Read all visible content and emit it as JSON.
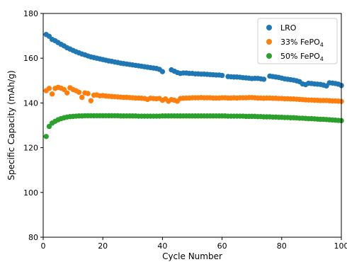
{
  "chart_data": {
    "type": "scatter",
    "xlabel": "Cycle Number",
    "ylabel": "Specific Capacity (mAh/g)",
    "xlim": [
      0,
      100
    ],
    "ylim": [
      80,
      180
    ],
    "xticks": [
      0,
      20,
      40,
      60,
      80,
      100
    ],
    "yticks": [
      80,
      100,
      120,
      140,
      160,
      180
    ],
    "grid": false,
    "legend_position": "top-right",
    "series": [
      {
        "name": "LRO",
        "legend_main": "LRO",
        "legend_sub": "",
        "color": "#1f77b4",
        "x": [
          1,
          2,
          3,
          4,
          5,
          6,
          7,
          8,
          9,
          10,
          11,
          12,
          13,
          14,
          15,
          16,
          17,
          18,
          19,
          20,
          21,
          22,
          23,
          24,
          25,
          26,
          27,
          28,
          29,
          30,
          31,
          32,
          33,
          34,
          35,
          36,
          37,
          38,
          39,
          40,
          43,
          44,
          45,
          46,
          47,
          48,
          49,
          50,
          51,
          52,
          53,
          54,
          55,
          56,
          57,
          58,
          59,
          60,
          62,
          63,
          64,
          65,
          66,
          67,
          68,
          69,
          70,
          71,
          72,
          73,
          74,
          76,
          77,
          78,
          79,
          80,
          81,
          82,
          83,
          84,
          85,
          86,
          87,
          88,
          89,
          90,
          91,
          92,
          93,
          94,
          95,
          96,
          97,
          98,
          99,
          100
        ],
        "y": [
          170.6,
          169.8,
          168.4,
          167.8,
          167.0,
          166.2,
          165.5,
          164.7,
          164.1,
          163.5,
          162.9,
          162.4,
          161.9,
          161.5,
          161.0,
          160.6,
          160.3,
          160.0,
          159.7,
          159.4,
          159.1,
          158.8,
          158.6,
          158.3,
          158.1,
          157.8,
          157.6,
          157.4,
          157.2,
          157.0,
          156.8,
          156.6,
          156.4,
          156.2,
          156.0,
          155.8,
          155.6,
          155.4,
          155.0,
          154.0,
          154.8,
          154.2,
          153.6,
          153.2,
          153.4,
          153.4,
          153.2,
          153.2,
          153.0,
          153.0,
          152.9,
          152.9,
          152.8,
          152.7,
          152.6,
          152.5,
          152.5,
          152.3,
          151.8,
          151.7,
          151.6,
          151.6,
          151.5,
          151.3,
          151.2,
          151.1,
          150.9,
          151.0,
          151.0,
          150.8,
          150.6,
          152.0,
          151.8,
          151.6,
          151.4,
          151.1,
          150.8,
          150.6,
          150.4,
          150.2,
          149.9,
          149.5,
          148.5,
          148.2,
          148.8,
          148.7,
          148.5,
          148.4,
          148.3,
          148.0,
          147.6,
          149.0,
          148.9,
          148.7,
          148.4,
          147.8
        ]
      },
      {
        "name": "33% FePO4",
        "legend_main": "33% FePO",
        "legend_sub": "4",
        "color": "#ff7f0e",
        "x": [
          1,
          2,
          3,
          4,
          5,
          6,
          7,
          8,
          9,
          10,
          11,
          12,
          13,
          14,
          15,
          16,
          17,
          18,
          19,
          20,
          21,
          22,
          23,
          24,
          25,
          26,
          27,
          28,
          29,
          30,
          31,
          32,
          33,
          34,
          35,
          36,
          37,
          38,
          39,
          40,
          41,
          42,
          43,
          44,
          45,
          46,
          47,
          48,
          49,
          50,
          51,
          52,
          53,
          54,
          55,
          56,
          57,
          58,
          59,
          60,
          61,
          62,
          63,
          64,
          65,
          66,
          67,
          68,
          69,
          70,
          71,
          72,
          73,
          74,
          75,
          76,
          77,
          78,
          79,
          80,
          81,
          82,
          83,
          84,
          85,
          86,
          87,
          88,
          89,
          90,
          91,
          92,
          93,
          94,
          95,
          96,
          97,
          98,
          99,
          100
        ],
        "y": [
          145.5,
          146.5,
          144.0,
          146.5,
          147.0,
          146.6,
          146.0,
          144.5,
          146.8,
          146.0,
          145.5,
          144.8,
          142.5,
          144.5,
          144.2,
          141.0,
          143.5,
          143.6,
          143.2,
          143.3,
          143.1,
          143.0,
          142.9,
          142.8,
          142.7,
          142.6,
          142.5,
          142.5,
          142.4,
          142.3,
          142.2,
          142.2,
          142.1,
          142.0,
          141.6,
          142.1,
          142.0,
          141.9,
          142.0,
          141.2,
          141.8,
          140.8,
          141.5,
          141.2,
          140.8,
          142.0,
          142.1,
          142.2,
          142.2,
          142.3,
          142.3,
          142.3,
          142.4,
          142.3,
          142.3,
          142.3,
          142.2,
          142.2,
          142.2,
          142.3,
          142.3,
          142.2,
          142.2,
          142.3,
          142.2,
          142.3,
          142.3,
          142.3,
          142.4,
          142.4,
          142.3,
          142.2,
          142.2,
          142.1,
          142.2,
          142.2,
          142.1,
          142.1,
          142.0,
          142.0,
          141.9,
          141.9,
          141.8,
          141.8,
          141.7,
          141.6,
          141.5,
          141.4,
          141.3,
          141.3,
          141.2,
          141.2,
          141.1,
          141.1,
          141.1,
          141.0,
          140.9,
          140.9,
          140.8,
          140.7
        ]
      },
      {
        "name": "50% FePO4",
        "legend_main": "50% FePO",
        "legend_sub": "4",
        "color": "#2ca02c",
        "x": [
          1,
          2,
          3,
          4,
          5,
          6,
          7,
          8,
          9,
          10,
          11,
          12,
          13,
          14,
          15,
          16,
          17,
          18,
          19,
          20,
          21,
          22,
          23,
          24,
          25,
          26,
          27,
          28,
          29,
          30,
          31,
          32,
          33,
          34,
          35,
          36,
          37,
          38,
          39,
          40,
          41,
          42,
          43,
          44,
          45,
          46,
          47,
          48,
          49,
          50,
          51,
          52,
          53,
          54,
          55,
          56,
          57,
          58,
          59,
          60,
          61,
          62,
          63,
          64,
          65,
          66,
          67,
          68,
          69,
          70,
          71,
          72,
          73,
          74,
          75,
          76,
          77,
          78,
          79,
          80,
          81,
          82,
          83,
          84,
          85,
          86,
          87,
          88,
          89,
          90,
          91,
          92,
          93,
          94,
          95,
          96,
          97,
          98,
          99,
          100
        ],
        "y": [
          125.0,
          129.5,
          131.0,
          131.8,
          132.5,
          133.0,
          133.4,
          133.7,
          133.9,
          134.0,
          134.1,
          134.2,
          134.2,
          134.3,
          134.3,
          134.3,
          134.3,
          134.3,
          134.3,
          134.3,
          134.3,
          134.3,
          134.3,
          134.3,
          134.3,
          134.2,
          134.2,
          134.2,
          134.2,
          134.2,
          134.2,
          134.1,
          134.1,
          134.1,
          134.1,
          134.1,
          134.1,
          134.1,
          134.1,
          134.2,
          134.2,
          134.2,
          134.2,
          134.2,
          134.2,
          134.2,
          134.2,
          134.2,
          134.2,
          134.2,
          134.2,
          134.2,
          134.2,
          134.2,
          134.2,
          134.2,
          134.2,
          134.2,
          134.2,
          134.2,
          134.2,
          134.1,
          134.1,
          134.1,
          134.1,
          134.1,
          134.1,
          134.0,
          134.0,
          134.0,
          134.0,
          133.9,
          133.9,
          133.8,
          133.8,
          133.8,
          133.7,
          133.7,
          133.6,
          133.6,
          133.5,
          133.5,
          133.4,
          133.4,
          133.3,
          133.2,
          133.2,
          133.1,
          133.0,
          133.0,
          132.9,
          132.8,
          132.7,
          132.7,
          132.6,
          132.5,
          132.4,
          132.3,
          132.2,
          132.1
        ]
      }
    ]
  }
}
